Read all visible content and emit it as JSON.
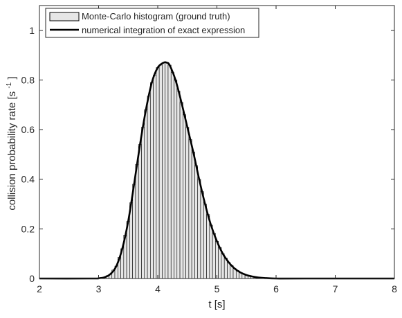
{
  "chart_data": {
    "type": "bar",
    "xlabel": "t [s]",
    "ylabel_main": "collision probability rate [s",
    "ylabel_sup": "-1",
    "ylabel_close": "]",
    "xlim": [
      2,
      8
    ],
    "ylim": [
      0,
      1.1
    ],
    "xticks": [
      "2",
      "3",
      "4",
      "5",
      "6",
      "7",
      "8"
    ],
    "yticks": [
      "0",
      "0.2",
      "0.4",
      "0.6",
      "0.8",
      "1"
    ],
    "grid": false,
    "legend_position": "top-left",
    "legend": [
      {
        "label": "Monte-Carlo histogram (ground truth)",
        "style": "patch"
      },
      {
        "label": "numerical integration of exact expression",
        "style": "line"
      }
    ],
    "colors": {
      "bar_fill": "#e6e6e6",
      "bar_edge": "#000000",
      "line": "#000000",
      "axis": "#262626"
    },
    "bin_width": 0.05,
    "series": [
      {
        "name": "Monte-Carlo histogram (ground truth)",
        "kind": "histogram",
        "x": [
          3.0,
          3.1,
          3.2,
          3.3,
          3.4,
          3.5,
          3.6,
          3.7,
          3.8,
          3.9,
          4.0,
          4.1,
          4.15,
          4.2,
          4.3,
          4.4,
          4.5,
          4.6,
          4.7,
          4.8,
          4.9,
          5.0,
          5.1,
          5.2,
          5.3,
          5.4,
          5.5,
          5.6,
          5.7,
          5.8,
          6.0
        ],
        "values": [
          0.001,
          0.005,
          0.018,
          0.05,
          0.12,
          0.23,
          0.38,
          0.54,
          0.68,
          0.79,
          0.85,
          0.87,
          0.87,
          0.86,
          0.8,
          0.71,
          0.61,
          0.51,
          0.4,
          0.3,
          0.215,
          0.15,
          0.1,
          0.065,
          0.04,
          0.024,
          0.014,
          0.008,
          0.004,
          0.002,
          0.0
        ]
      },
      {
        "name": "numerical integration of exact expression",
        "kind": "line",
        "x": [
          2.0,
          2.9,
          3.0,
          3.1,
          3.2,
          3.3,
          3.4,
          3.5,
          3.6,
          3.7,
          3.8,
          3.9,
          4.0,
          4.1,
          4.15,
          4.2,
          4.3,
          4.4,
          4.5,
          4.6,
          4.7,
          4.8,
          4.9,
          5.0,
          5.1,
          5.2,
          5.3,
          5.4,
          5.5,
          5.6,
          5.7,
          5.8,
          6.0,
          6.5,
          8.0
        ],
        "values": [
          0.0,
          0.0,
          0.001,
          0.005,
          0.018,
          0.05,
          0.12,
          0.23,
          0.38,
          0.54,
          0.68,
          0.79,
          0.85,
          0.87,
          0.87,
          0.86,
          0.8,
          0.71,
          0.61,
          0.51,
          0.4,
          0.3,
          0.215,
          0.15,
          0.1,
          0.065,
          0.04,
          0.024,
          0.014,
          0.008,
          0.004,
          0.002,
          0.0,
          0.0,
          0.0
        ]
      }
    ]
  }
}
